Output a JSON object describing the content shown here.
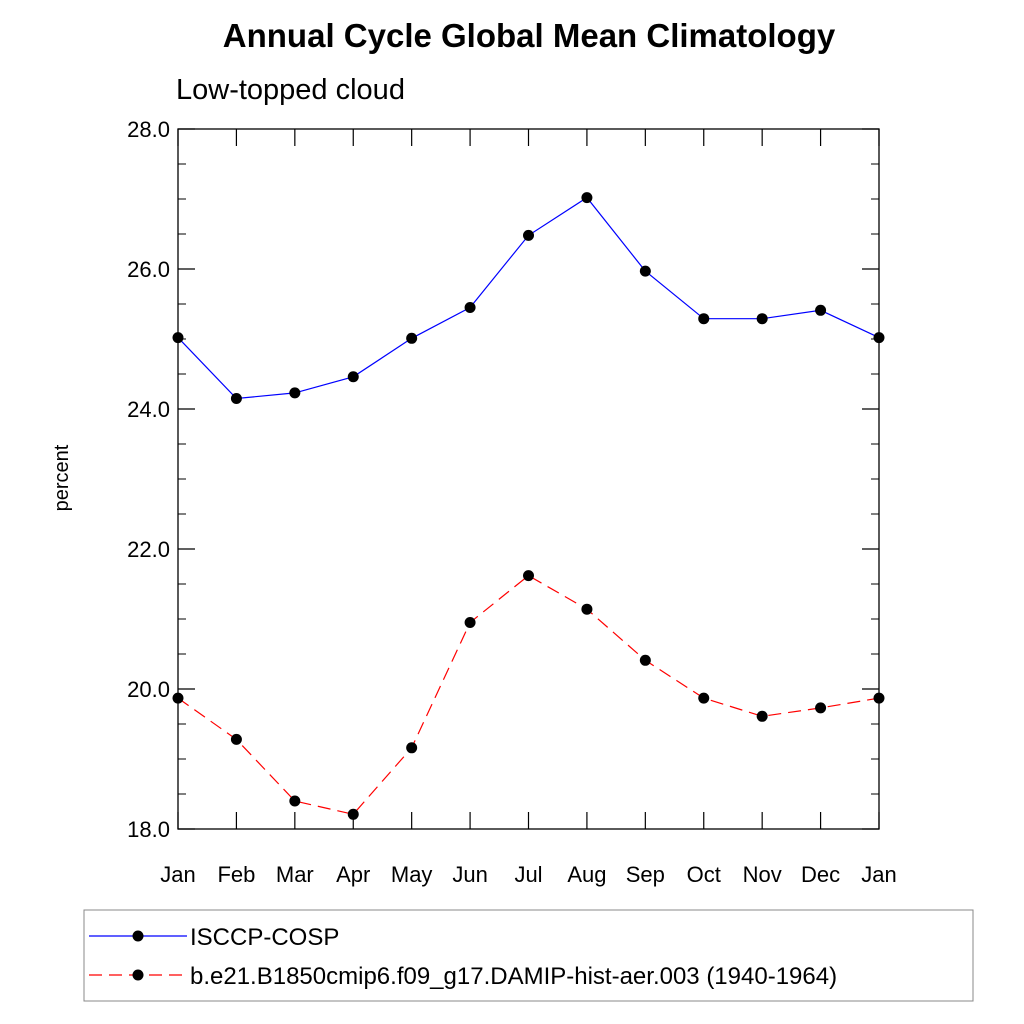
{
  "chart_data": {
    "type": "line",
    "title": "Annual Cycle Global Mean Climatology",
    "subtitle": "Low-topped cloud",
    "ylabel": "percent",
    "xlabel": "",
    "categories": [
      "Jan",
      "Feb",
      "Mar",
      "Apr",
      "May",
      "Jun",
      "Jul",
      "Aug",
      "Sep",
      "Oct",
      "Nov",
      "Dec",
      "Jan"
    ],
    "ylim": [
      18.0,
      28.0
    ],
    "yticks": [
      "18.0",
      "20.0",
      "22.0",
      "24.0",
      "26.0",
      "28.0"
    ],
    "grid": false,
    "legend_position": "bottom",
    "series": [
      {
        "name": "ISCCP-COSP",
        "color": "#0000ff",
        "line_style": "solid",
        "marker": "filled-circle",
        "values": [
          25.02,
          24.15,
          24.23,
          24.46,
          25.01,
          25.45,
          26.48,
          27.02,
          25.97,
          25.29,
          25.29,
          25.41,
          25.02
        ]
      },
      {
        "name": "b.e21.B1850cmip6.f09_g17.DAMIP-hist-aer.003 (1940-1964)",
        "color": "#ff0000",
        "line_style": "dashed",
        "marker": "filled-circle",
        "values": [
          19.87,
          19.28,
          18.4,
          18.21,
          19.16,
          20.95,
          21.62,
          21.14,
          20.41,
          19.87,
          19.61,
          19.73,
          19.87
        ]
      }
    ]
  }
}
